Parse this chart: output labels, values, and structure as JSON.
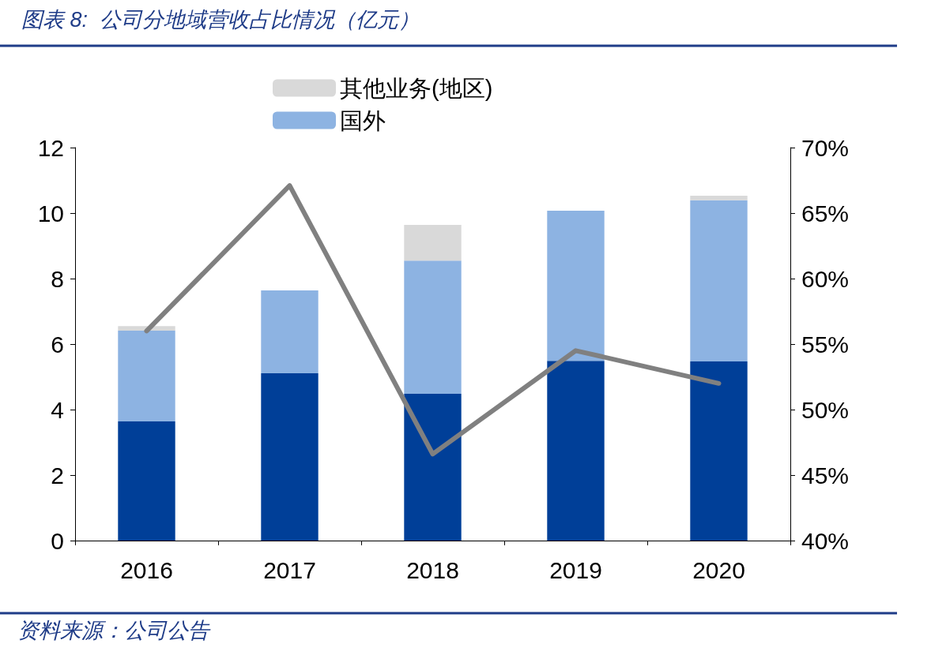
{
  "chart_data": {
    "type": "bar",
    "title": "图表 8:  公司分地域营收占比情况（亿元）",
    "annotations": [
      "资料来源：公司公告"
    ],
    "categories": [
      "2016",
      "2017",
      "2018",
      "2019",
      "2020"
    ],
    "stacked": true,
    "series": [
      {
        "color": "#003f98",
        "values": [
          3.64,
          5.11,
          4.48,
          5.49,
          5.47
        ]
      },
      {
        "name": "国外",
        "color": "#8db3e2",
        "values": [
          2.77,
          2.53,
          4.07,
          4.58,
          4.92
        ]
      },
      {
        "name": "其他业务(地区)",
        "color": "#d9d9d9",
        "values": [
          0.14,
          0,
          1.09,
          0,
          0.14
        ]
      },
      {
        "type": "line",
        "axis": "y2",
        "color": "#808080",
        "values": [
          56,
          67.1,
          46.6,
          54.5,
          52
        ]
      }
    ],
    "ylim": [
      0,
      12
    ],
    "yticks": [
      0,
      2,
      4,
      6,
      8,
      10,
      12
    ],
    "y2lim": [
      40,
      70
    ],
    "y2ticks": [
      {
        "value": 40,
        "label": "40%"
      },
      {
        "value": 45,
        "label": "45%"
      },
      {
        "value": 50,
        "label": "50%"
      },
      {
        "value": 55,
        "label": "55%"
      },
      {
        "value": 60,
        "label": "60%"
      },
      {
        "value": 65,
        "label": "65%"
      },
      {
        "value": 70,
        "label": "70%"
      }
    ],
    "grid": false,
    "legend": "top",
    "marker": "none",
    "line_style": "solid"
  }
}
